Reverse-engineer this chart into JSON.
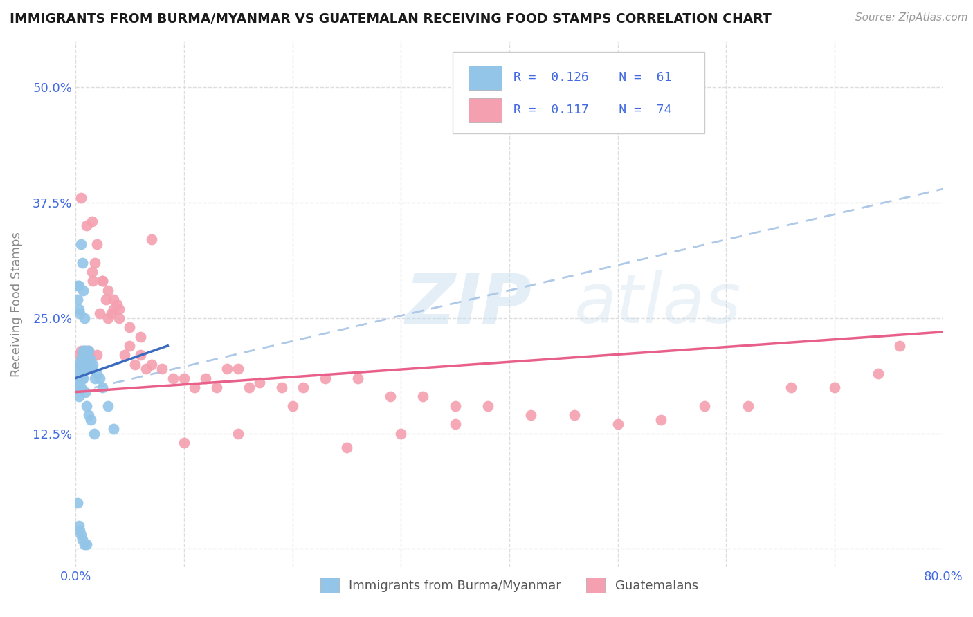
{
  "title": "IMMIGRANTS FROM BURMA/MYANMAR VS GUATEMALAN RECEIVING FOOD STAMPS CORRELATION CHART",
  "source": "Source: ZipAtlas.com",
  "ylabel": "Receiving Food Stamps",
  "xlim": [
    0.0,
    0.8
  ],
  "ylim": [
    -0.02,
    0.55
  ],
  "xticks": [
    0.0,
    0.1,
    0.2,
    0.3,
    0.4,
    0.5,
    0.6,
    0.7,
    0.8
  ],
  "xticklabels": [
    "0.0%",
    "",
    "",
    "",
    "",
    "",
    "",
    "",
    "80.0%"
  ],
  "yticks": [
    0.0,
    0.125,
    0.25,
    0.375,
    0.5
  ],
  "yticklabels": [
    "",
    "12.5%",
    "25.0%",
    "37.5%",
    "50.0%"
  ],
  "blue_color": "#92c5e8",
  "pink_color": "#f4a0b0",
  "blue_line_color": "#3a6bbf",
  "pink_line_color": "#e8608a",
  "dashed_line_color": "#aec8e8",
  "background_color": "#ffffff",
  "grid_color": "#dddddd",
  "legend_text_color": "#4169e1",
  "watermark_color": "#c8dff0",
  "tick_color": "#4169e1",
  "ylabel_color": "#888888",
  "blue_scatter_x": [
    0.002,
    0.002,
    0.002,
    0.003,
    0.003,
    0.003,
    0.003,
    0.003,
    0.004,
    0.004,
    0.004,
    0.004,
    0.005,
    0.005,
    0.005,
    0.005,
    0.006,
    0.006,
    0.006,
    0.007,
    0.007,
    0.007,
    0.008,
    0.008,
    0.009,
    0.009,
    0.01,
    0.01,
    0.011,
    0.012,
    0.013,
    0.014,
    0.015,
    0.016,
    0.018,
    0.02,
    0.022,
    0.025,
    0.03,
    0.035,
    0.002,
    0.002,
    0.003,
    0.003,
    0.004,
    0.005,
    0.006,
    0.007,
    0.008,
    0.009,
    0.01,
    0.012,
    0.014,
    0.017,
    0.002,
    0.003,
    0.004,
    0.005,
    0.006,
    0.008,
    0.01
  ],
  "blue_scatter_y": [
    0.195,
    0.185,
    0.175,
    0.2,
    0.195,
    0.185,
    0.175,
    0.165,
    0.2,
    0.195,
    0.185,
    0.175,
    0.205,
    0.195,
    0.185,
    0.175,
    0.21,
    0.195,
    0.185,
    0.215,
    0.2,
    0.185,
    0.215,
    0.2,
    0.21,
    0.195,
    0.215,
    0.2,
    0.21,
    0.215,
    0.2,
    0.205,
    0.195,
    0.2,
    0.185,
    0.19,
    0.185,
    0.175,
    0.155,
    0.13,
    0.285,
    0.27,
    0.285,
    0.26,
    0.255,
    0.33,
    0.31,
    0.28,
    0.25,
    0.17,
    0.155,
    0.145,
    0.14,
    0.125,
    0.05,
    0.025,
    0.02,
    0.015,
    0.01,
    0.005,
    0.005
  ],
  "pink_scatter_x": [
    0.003,
    0.004,
    0.005,
    0.006,
    0.007,
    0.008,
    0.009,
    0.01,
    0.011,
    0.012,
    0.013,
    0.015,
    0.016,
    0.018,
    0.02,
    0.022,
    0.025,
    0.028,
    0.03,
    0.033,
    0.035,
    0.038,
    0.04,
    0.045,
    0.05,
    0.055,
    0.06,
    0.065,
    0.07,
    0.08,
    0.09,
    0.1,
    0.11,
    0.12,
    0.13,
    0.14,
    0.15,
    0.16,
    0.17,
    0.19,
    0.21,
    0.23,
    0.26,
    0.29,
    0.32,
    0.35,
    0.38,
    0.42,
    0.46,
    0.5,
    0.54,
    0.58,
    0.62,
    0.66,
    0.7,
    0.74,
    0.76,
    0.005,
    0.01,
    0.015,
    0.02,
    0.025,
    0.03,
    0.035,
    0.04,
    0.05,
    0.06,
    0.07,
    0.1,
    0.15,
    0.2,
    0.25,
    0.3,
    0.35
  ],
  "pink_scatter_y": [
    0.21,
    0.2,
    0.215,
    0.205,
    0.2,
    0.215,
    0.2,
    0.205,
    0.195,
    0.215,
    0.21,
    0.3,
    0.29,
    0.31,
    0.21,
    0.255,
    0.29,
    0.27,
    0.25,
    0.255,
    0.27,
    0.265,
    0.25,
    0.21,
    0.22,
    0.2,
    0.21,
    0.195,
    0.2,
    0.195,
    0.185,
    0.185,
    0.175,
    0.185,
    0.175,
    0.195,
    0.195,
    0.175,
    0.18,
    0.175,
    0.175,
    0.185,
    0.185,
    0.165,
    0.165,
    0.155,
    0.155,
    0.145,
    0.145,
    0.135,
    0.14,
    0.155,
    0.155,
    0.175,
    0.175,
    0.19,
    0.22,
    0.38,
    0.35,
    0.355,
    0.33,
    0.29,
    0.28,
    0.26,
    0.26,
    0.24,
    0.23,
    0.335,
    0.115,
    0.125,
    0.155,
    0.11,
    0.125,
    0.135
  ],
  "blue_line_x": [
    0.0,
    0.085
  ],
  "blue_line_y": [
    0.185,
    0.22
  ],
  "pink_line_x": [
    0.0,
    0.8
  ],
  "pink_line_y": [
    0.17,
    0.235
  ],
  "dashed_line_x": [
    0.0,
    0.8
  ],
  "dashed_line_y": [
    0.17,
    0.39
  ]
}
